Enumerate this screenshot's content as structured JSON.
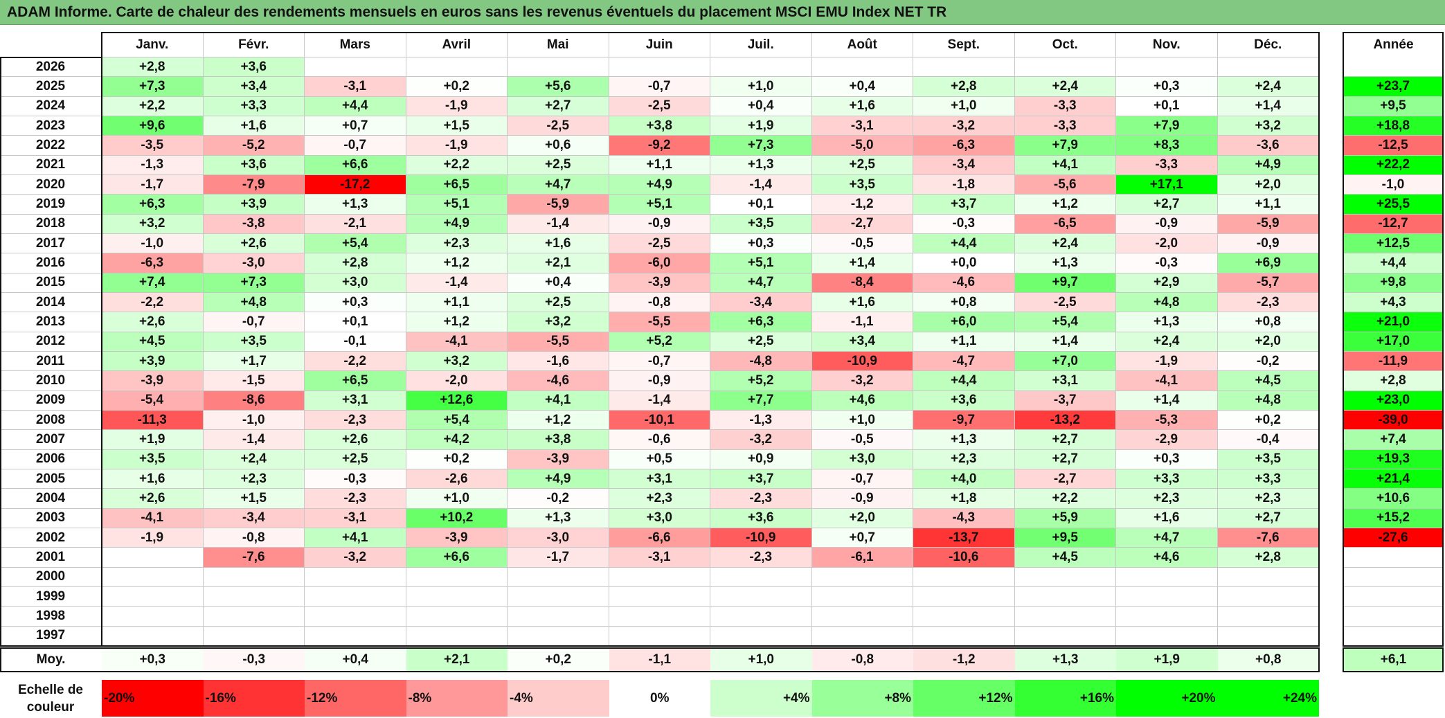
{
  "title": "ADAM Informe. Carte de chaleur des rendements mensuels en euros sans les revenus éventuels du placement MSCI EMU Index NET TR",
  "months": [
    "Janv.",
    "Févr.",
    "Mars",
    "Avril",
    "Mai",
    "Juin",
    "Juil.",
    "Août",
    "Sept.",
    "Oct.",
    "Nov.",
    "Déc."
  ],
  "year_header": "Année",
  "avg_label": "Moy.",
  "scale_label_line1": "Echelle de",
  "scale_label_line2": "couleur",
  "colors": {
    "title_bg": "#82c882",
    "negative_max": "#ff0000",
    "neutral": "#ffffff",
    "positive_max": "#00ff00"
  },
  "chart_data": {
    "type": "heatmap",
    "title": "ADAM Informe. Carte de chaleur des rendements mensuels en euros sans les revenus éventuels du placement MSCI EMU Index NET TR",
    "rows": [
      {
        "year": "2026",
        "values": [
          "+2,8",
          "+3,6",
          "",
          "",
          "",
          "",
          "",
          "",
          "",
          "",
          "",
          ""
        ],
        "annual": ""
      },
      {
        "year": "2025",
        "values": [
          "+7,3",
          "+3,4",
          "-3,1",
          "+0,2",
          "+5,6",
          "-0,7",
          "+1,0",
          "+0,4",
          "+2,8",
          "+2,4",
          "+0,3",
          "+2,4"
        ],
        "annual": "+23,7"
      },
      {
        "year": "2024",
        "values": [
          "+2,2",
          "+3,3",
          "+4,4",
          "-1,9",
          "+2,7",
          "-2,5",
          "+0,4",
          "+1,6",
          "+1,0",
          "-3,3",
          "+0,1",
          "+1,4"
        ],
        "annual": "+9,5"
      },
      {
        "year": "2023",
        "values": [
          "+9,6",
          "+1,6",
          "+0,7",
          "+1,5",
          "-2,5",
          "+3,8",
          "+1,9",
          "-3,1",
          "-3,2",
          "-3,3",
          "+7,9",
          "+3,2"
        ],
        "annual": "+18,8"
      },
      {
        "year": "2022",
        "values": [
          "-3,5",
          "-5,2",
          "-0,7",
          "-1,9",
          "+0,6",
          "-9,2",
          "+7,3",
          "-5,0",
          "-6,3",
          "+7,9",
          "+8,3",
          "-3,6"
        ],
        "annual": "-12,5"
      },
      {
        "year": "2021",
        "values": [
          "-1,3",
          "+3,6",
          "+6,6",
          "+2,2",
          "+2,5",
          "+1,1",
          "+1,3",
          "+2,5",
          "-3,4",
          "+4,1",
          "-3,3",
          "+4,9"
        ],
        "annual": "+22,2"
      },
      {
        "year": "2020",
        "values": [
          "-1,7",
          "-7,9",
          "-17,2",
          "+6,5",
          "+4,7",
          "+4,9",
          "-1,4",
          "+3,5",
          "-1,8",
          "-5,6",
          "+17,1",
          "+2,0"
        ],
        "annual": "-1,0"
      },
      {
        "year": "2019",
        "values": [
          "+6,3",
          "+3,9",
          "+1,3",
          "+5,1",
          "-5,9",
          "+5,1",
          "+0,1",
          "-1,2",
          "+3,7",
          "+1,2",
          "+2,7",
          "+1,1"
        ],
        "annual": "+25,5"
      },
      {
        "year": "2018",
        "values": [
          "+3,2",
          "-3,8",
          "-2,1",
          "+4,9",
          "-1,4",
          "-0,9",
          "+3,5",
          "-2,7",
          "-0,3",
          "-6,5",
          "-0,9",
          "-5,9"
        ],
        "annual": "-12,7"
      },
      {
        "year": "2017",
        "values": [
          "-1,0",
          "+2,6",
          "+5,4",
          "+2,3",
          "+1,6",
          "-2,5",
          "+0,3",
          "-0,5",
          "+4,4",
          "+2,4",
          "-2,0",
          "-0,9"
        ],
        "annual": "+12,5"
      },
      {
        "year": "2016",
        "values": [
          "-6,3",
          "-3,0",
          "+2,8",
          "+1,2",
          "+2,1",
          "-6,0",
          "+5,1",
          "+1,4",
          "+0,0",
          "+1,3",
          "-0,3",
          "+6,9"
        ],
        "annual": "+4,4"
      },
      {
        "year": "2015",
        "values": [
          "+7,4",
          "+7,3",
          "+3,0",
          "-1,4",
          "+0,4",
          "-3,9",
          "+4,7",
          "-8,4",
          "-4,6",
          "+9,7",
          "+2,9",
          "-5,7"
        ],
        "annual": "+9,8"
      },
      {
        "year": "2014",
        "values": [
          "-2,2",
          "+4,8",
          "+0,3",
          "+1,1",
          "+2,5",
          "-0,8",
          "-3,4",
          "+1,6",
          "+0,8",
          "-2,5",
          "+4,8",
          "-2,3"
        ],
        "annual": "+4,3"
      },
      {
        "year": "2013",
        "values": [
          "+2,6",
          "-0,7",
          "+0,1",
          "+1,2",
          "+3,2",
          "-5,5",
          "+6,3",
          "-1,1",
          "+6,0",
          "+5,4",
          "+1,3",
          "+0,8"
        ],
        "annual": "+21,0"
      },
      {
        "year": "2012",
        "values": [
          "+4,5",
          "+3,5",
          "-0,1",
          "-4,1",
          "-5,5",
          "+5,2",
          "+2,5",
          "+3,4",
          "+1,1",
          "+1,4",
          "+2,4",
          "+2,0"
        ],
        "annual": "+17,0"
      },
      {
        "year": "2011",
        "values": [
          "+3,9",
          "+1,7",
          "-2,2",
          "+3,2",
          "-1,6",
          "-0,7",
          "-4,8",
          "-10,9",
          "-4,7",
          "+7,0",
          "-1,9",
          "-0,2"
        ],
        "annual": "-11,9"
      },
      {
        "year": "2010",
        "values": [
          "-3,9",
          "-1,5",
          "+6,5",
          "-2,0",
          "-4,6",
          "-0,9",
          "+5,2",
          "-3,2",
          "+4,4",
          "+3,1",
          "-4,1",
          "+4,5"
        ],
        "annual": "+2,8"
      },
      {
        "year": "2009",
        "values": [
          "-5,4",
          "-8,6",
          "+3,1",
          "+12,6",
          "+4,1",
          "-1,4",
          "+7,7",
          "+4,6",
          "+3,6",
          "-3,7",
          "+1,4",
          "+4,8"
        ],
        "annual": "+23,0"
      },
      {
        "year": "2008",
        "values": [
          "-11,3",
          "-1,0",
          "-2,3",
          "+5,4",
          "+1,2",
          "-10,1",
          "-1,3",
          "+1,0",
          "-9,7",
          "-13,2",
          "-5,3",
          "+0,2"
        ],
        "annual": "-39,0"
      },
      {
        "year": "2007",
        "values": [
          "+1,9",
          "-1,4",
          "+2,6",
          "+4,2",
          "+3,8",
          "-0,6",
          "-3,2",
          "-0,5",
          "+1,3",
          "+2,7",
          "-2,9",
          "-0,4"
        ],
        "annual": "+7,4"
      },
      {
        "year": "2006",
        "values": [
          "+3,5",
          "+2,4",
          "+2,5",
          "+0,2",
          "-3,9",
          "+0,5",
          "+0,9",
          "+3,0",
          "+2,3",
          "+2,7",
          "+0,3",
          "+3,5"
        ],
        "annual": "+19,3"
      },
      {
        "year": "2005",
        "values": [
          "+1,6",
          "+2,3",
          "-0,3",
          "-2,6",
          "+4,9",
          "+3,1",
          "+3,7",
          "-0,7",
          "+4,0",
          "-2,7",
          "+3,3",
          "+3,3"
        ],
        "annual": "+21,4"
      },
      {
        "year": "2004",
        "values": [
          "+2,6",
          "+1,5",
          "-2,3",
          "+1,0",
          "-0,2",
          "+2,3",
          "-2,3",
          "-0,9",
          "+1,8",
          "+2,2",
          "+2,3",
          "+2,3"
        ],
        "annual": "+10,6"
      },
      {
        "year": "2003",
        "values": [
          "-4,1",
          "-3,4",
          "-3,1",
          "+10,2",
          "+1,3",
          "+3,0",
          "+3,6",
          "+2,0",
          "-4,3",
          "+5,9",
          "+1,6",
          "+2,7"
        ],
        "annual": "+15,2"
      },
      {
        "year": "2002",
        "values": [
          "-1,9",
          "-0,8",
          "+4,1",
          "-3,9",
          "-3,0",
          "-6,6",
          "-10,9",
          "+0,7",
          "-13,7",
          "+9,5",
          "+4,7",
          "-7,6"
        ],
        "annual": "-27,6"
      },
      {
        "year": "2001",
        "values": [
          "",
          "-7,6",
          "-3,2",
          "+6,6",
          "-1,7",
          "-3,1",
          "-2,3",
          "-6,1",
          "-10,6",
          "+4,5",
          "+4,6",
          "+2,8"
        ],
        "annual": ""
      },
      {
        "year": "2000",
        "values": [
          "",
          "",
          "",
          "",
          "",
          "",
          "",
          "",
          "",
          "",
          "",
          ""
        ],
        "annual": ""
      },
      {
        "year": "1999",
        "values": [
          "",
          "",
          "",
          "",
          "",
          "",
          "",
          "",
          "",
          "",
          "",
          ""
        ],
        "annual": ""
      },
      {
        "year": "1998",
        "values": [
          "",
          "",
          "",
          "",
          "",
          "",
          "",
          "",
          "",
          "",
          "",
          ""
        ],
        "annual": ""
      },
      {
        "year": "1997",
        "values": [
          "",
          "",
          "",
          "",
          "",
          "",
          "",
          "",
          "",
          "",
          "",
          ""
        ],
        "annual": ""
      }
    ],
    "average": {
      "values": [
        "+0,3",
        "-0,3",
        "+0,4",
        "+2,1",
        "+0,2",
        "-1,1",
        "+1,0",
        "-0,8",
        "-1,2",
        "+1,3",
        "+1,9",
        "+0,8"
      ],
      "annual": "+6,1"
    },
    "color_scale": {
      "min": -20,
      "max": 24,
      "labels": [
        "-20%",
        "-16%",
        "-12%",
        "-8%",
        "-4%",
        "0%",
        "+4%",
        "+8%",
        "+12%",
        "+16%",
        "+20%",
        "+24%"
      ],
      "values": [
        -20,
        -16,
        -12,
        -8,
        -4,
        0,
        4,
        8,
        12,
        16,
        20,
        24
      ]
    }
  }
}
